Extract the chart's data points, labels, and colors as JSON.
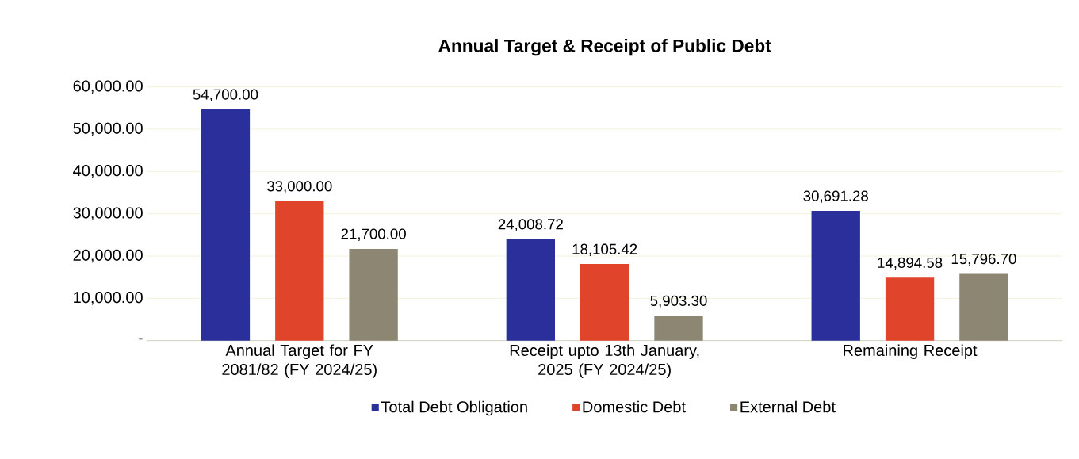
{
  "chart_data": {
    "type": "bar",
    "title": "Annual Target & Receipt of Public Debt",
    "categories": [
      "Annual Target for FY 2081/82 (FY 2024/25)",
      "Receipt upto 13th January, 2025 (FY 2024/25)",
      "Remaining Receipt"
    ],
    "series": [
      {
        "name": "Total Debt Obligation",
        "color": "#2a2f9c",
        "values": [
          54700,
          24008.72,
          30691.28
        ],
        "value_labels": [
          "54,700.00",
          "24,008.72",
          "30,691.28"
        ]
      },
      {
        "name": "Domestic Debt",
        "color": "#e0452b",
        "values": [
          33000,
          18105.42,
          14894.58
        ],
        "value_labels": [
          "33,000.00",
          "18,105.42",
          "14,894.58"
        ]
      },
      {
        "name": "External Debt",
        "color": "#8c8672",
        "values": [
          21700,
          5903.3,
          15796.7
        ],
        "value_labels": [
          "21,700.00",
          "5,903.30",
          "15,796.70"
        ]
      }
    ],
    "ylim": [
      0,
      60000
    ],
    "yticks": [
      {
        "value": 0,
        "label": "-"
      },
      {
        "value": 10000,
        "label": "10,000.00"
      },
      {
        "value": 20000,
        "label": "20,000.00"
      },
      {
        "value": 30000,
        "label": "30,000.00"
      },
      {
        "value": 40000,
        "label": "40,000.00"
      },
      {
        "value": 50000,
        "label": "50,000.00"
      },
      {
        "value": 60000,
        "label": "60,000.00"
      }
    ],
    "grid": "y",
    "legend": "bottom"
  }
}
